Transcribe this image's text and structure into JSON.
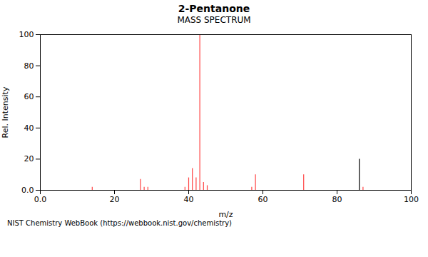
{
  "chart_data": {
    "type": "stem",
    "title": "2-Pentanone",
    "subtitle": "MASS SPECTRUM",
    "x_label": "m/z",
    "y_label": "Rel. Intensity",
    "annotations": [
      "NIST Chemistry WebBook (https://webbook.nist.gov/chemistry)"
    ],
    "xlim": [
      0.0,
      100
    ],
    "ylim": [
      0.0,
      100
    ],
    "xticks": [
      {
        "value": 0.0,
        "label": "0.0"
      },
      20,
      40,
      60,
      80,
      100
    ],
    "yticks": [
      {
        "value": 0.0,
        "label": "0.0"
      },
      20,
      40,
      60,
      80,
      100
    ],
    "grid": false,
    "series": [
      {
        "color": "#ff4444",
        "x": [
          14,
          27,
          28,
          29,
          39,
          40,
          41,
          42,
          43,
          44,
          45,
          57,
          58,
          71,
          87
        ],
        "values": [
          2.0,
          7.0,
          2.0,
          2.0,
          2.0,
          8.0,
          14.0,
          8.0,
          100.0,
          5.0,
          3.0,
          2.0,
          10.0,
          10.0,
          2.0
        ]
      },
      {
        "color": "#000000",
        "x": [
          86
        ],
        "values": [
          20.0
        ]
      }
    ]
  }
}
